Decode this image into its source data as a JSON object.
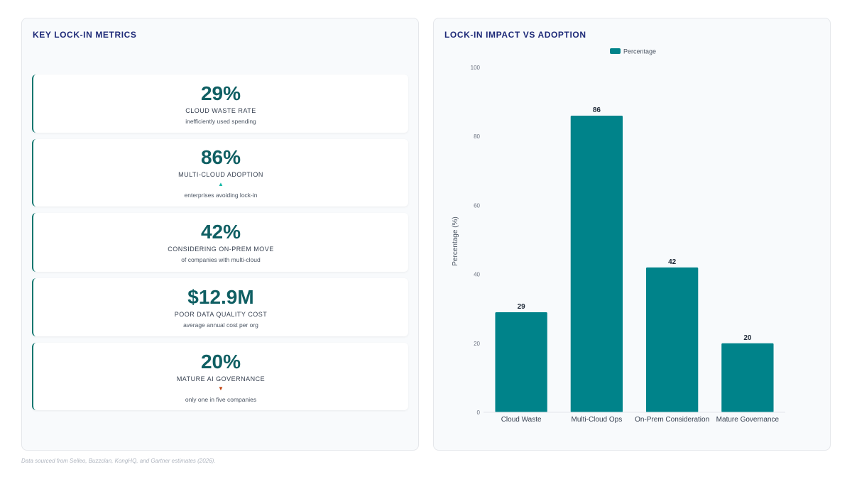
{
  "left_panel": {
    "title": "KEY LOCK-IN METRICS",
    "metrics": [
      {
        "value": "29%",
        "label": "CLOUD WASTE RATE",
        "trend": "",
        "sub": "inefficiently used spending"
      },
      {
        "value": "86%",
        "label": "MULTI-CLOUD ADOPTION",
        "trend": "▲",
        "sub": "enterprises avoiding lock-in"
      },
      {
        "value": "42%",
        "label": "CONSIDERING ON-PREM MOVE",
        "trend": "",
        "sub": "of companies with multi-cloud"
      },
      {
        "value": "$12.9M",
        "label": "POOR DATA QUALITY COST",
        "trend": "",
        "sub": "average annual cost per org"
      },
      {
        "value": "20%",
        "label": "MATURE AI GOVERNANCE",
        "trend": "▼",
        "sub": "only one in five companies"
      }
    ]
  },
  "right_panel": {
    "title": "LOCK-IN IMPACT VS ADOPTION"
  },
  "chart_data": {
    "type": "bar",
    "categories": [
      "Cloud Waste",
      "Multi-Cloud Ops",
      "On-Prem Consideration",
      "Mature Governance"
    ],
    "series": [
      {
        "name": "Percentage",
        "values": [
          29,
          86,
          42,
          20
        ]
      }
    ],
    "title": "",
    "xlabel": "",
    "ylabel": "Percentage (%)",
    "ylim": [
      0,
      100
    ],
    "yticks": [
      0,
      20,
      40,
      60,
      80,
      100
    ],
    "grid": false,
    "legend_position": "top-center",
    "bar_color": "#00838a"
  },
  "footer": "Data sourced from Selleo, Buzzclan, KongHQ, and Gartner estimates (2026)."
}
